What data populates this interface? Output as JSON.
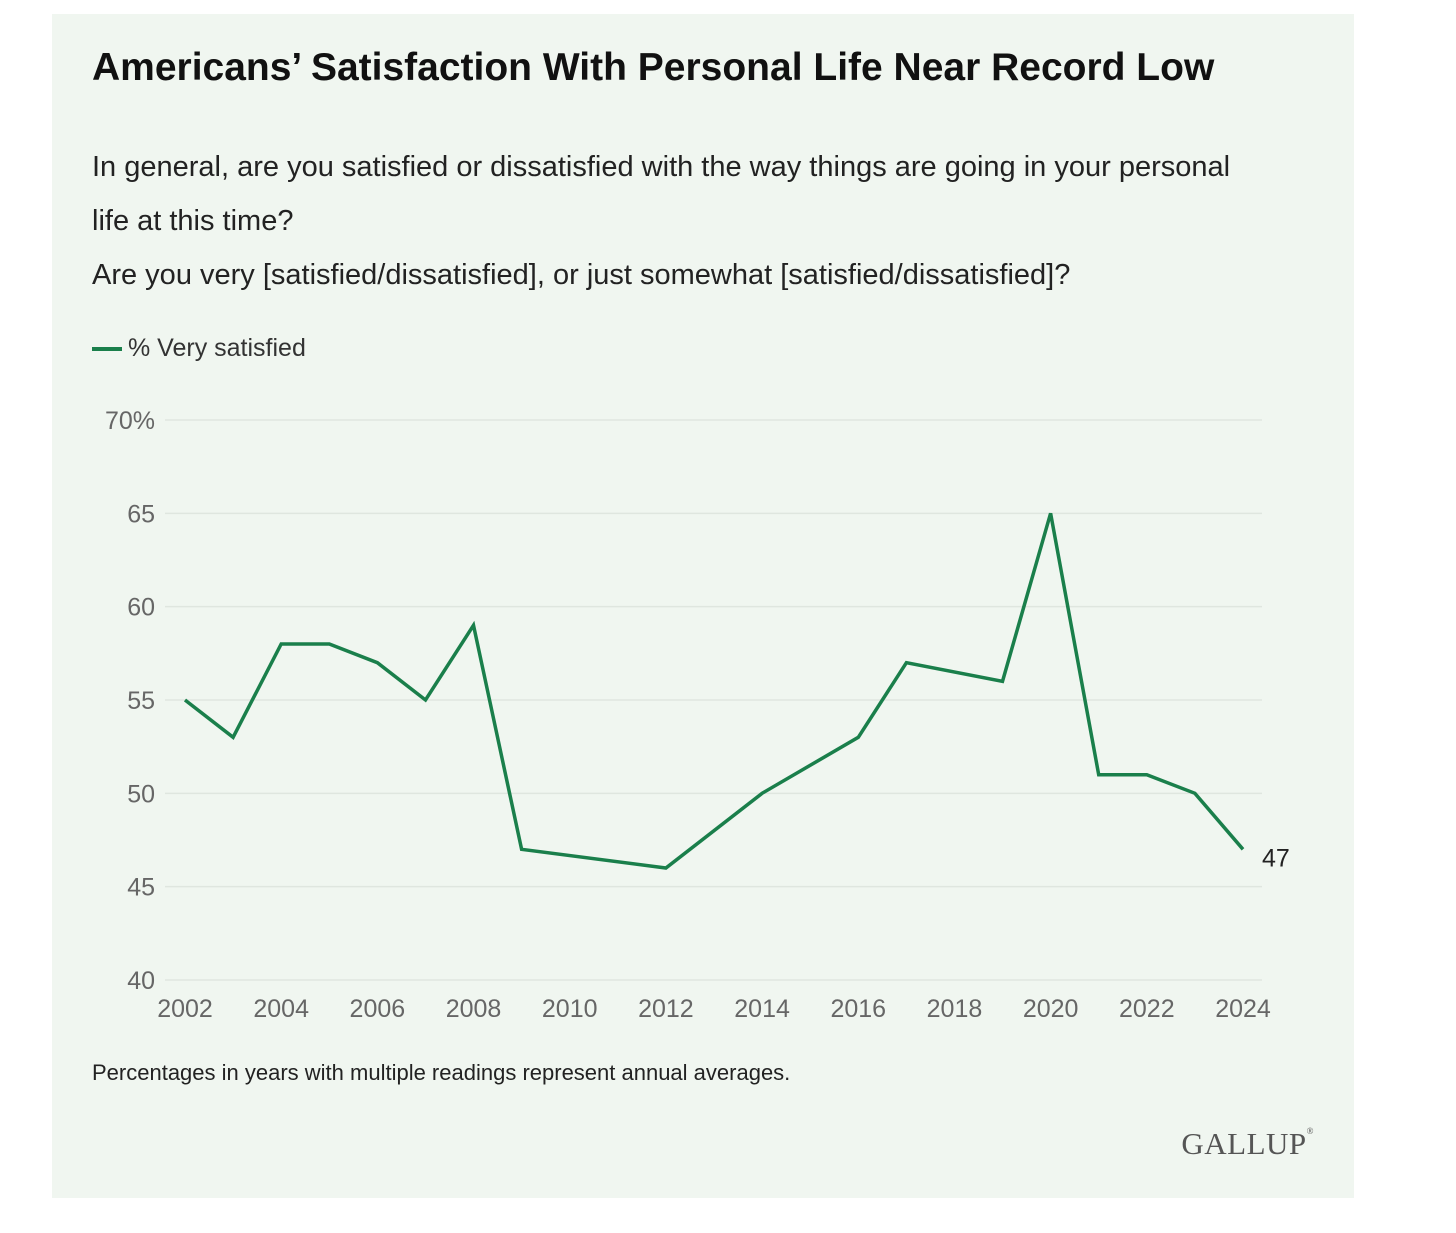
{
  "header": {
    "title": "Americans’ Satisfaction With Personal Life Near Record Low",
    "question_line1": "In general, are you satisfied or dissatisfied with the way things are going in your personal life at this time?",
    "question_line2": "Are you very [satisfied/dissatisfied], or just somewhat [satisfied/dissatisfied]?"
  },
  "legend": {
    "label": "% Very satisfied"
  },
  "footer": {
    "note": "Percentages in years with multiple readings represent annual averages.",
    "logo": "GALLUP",
    "logo_mark": "®"
  },
  "colors": {
    "line": "#1a7f4b",
    "grid": "#dfe6df",
    "tick": "#666666",
    "background": "#f0f6f0"
  },
  "chart_data": {
    "type": "line",
    "title": "Americans’ Satisfaction With Personal Life Near Record Low",
    "xlabel": "",
    "ylabel": "",
    "ylim": [
      40,
      70
    ],
    "xlim": [
      2002,
      2024
    ],
    "y_ticks": [
      40,
      45,
      50,
      55,
      60,
      65,
      70
    ],
    "y_tick_labels": [
      "40",
      "45",
      "50",
      "55",
      "60",
      "65",
      "70%"
    ],
    "x_ticks": [
      2002,
      2004,
      2006,
      2008,
      2010,
      2012,
      2014,
      2016,
      2018,
      2020,
      2022,
      2024
    ],
    "x_tick_labels": [
      "2002",
      "2004",
      "2006",
      "2008",
      "2010",
      "2012",
      "2014",
      "2016",
      "2018",
      "2020",
      "2022",
      "2024"
    ],
    "grid": true,
    "legend_position": "top-left",
    "series": [
      {
        "name": "% Very satisfied",
        "x": [
          2002,
          2003,
          2004,
          2005,
          2006,
          2007,
          2008,
          2009,
          2012,
          2014,
          2016,
          2017,
          2019,
          2020,
          2021,
          2022,
          2023,
          2024
        ],
        "values": [
          55,
          53,
          58,
          58,
          57,
          55,
          59,
          47,
          46,
          50,
          53,
          57,
          56,
          65,
          51,
          51,
          50,
          47
        ]
      }
    ],
    "annotations": [
      {
        "x": 2024,
        "y": 47,
        "text": "47"
      }
    ]
  }
}
